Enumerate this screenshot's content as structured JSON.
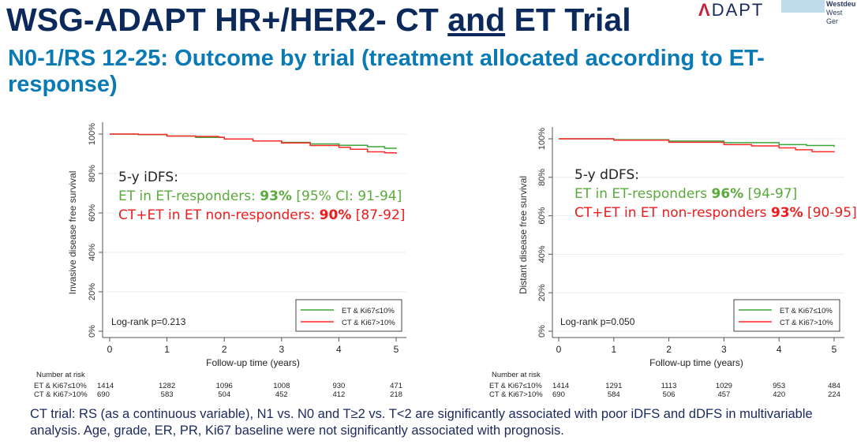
{
  "header": {
    "title_part1": "WSG-ADAPT HR+/HER2- CT ",
    "title_and": "and",
    "title_part2": " ET Trial",
    "subtitle": "N0-1/RS 12-25: Outcome by trial (treatment allocated according to ET-response)",
    "logo_text": "ADAPT",
    "logo2_line1": "Westdeu",
    "logo2_line2": "West Ger"
  },
  "colors": {
    "green": "#3aa63a",
    "red": "#ff2a2a",
    "title": "#0b2a5b",
    "subtitle": "#0a7ab5"
  },
  "chart_data": [
    {
      "type": "line",
      "ylabel": "Invasive disease free survival",
      "xlabel": "Follow-up time (years)",
      "xlim": [
        0,
        5
      ],
      "ylim": [
        0,
        100
      ],
      "xticks": [
        "0",
        "1",
        "2",
        "3",
        "4",
        "5"
      ],
      "yticks": [
        "0%",
        "20%",
        "40%",
        "60%",
        "80%",
        "100%"
      ],
      "grid": true,
      "legend_placement": "bottom-right",
      "logrank": "Log-rank p=0.213",
      "annotation": {
        "head": "5-y iDFS:",
        "l1a": "ET in ET-responders: ",
        "l1b": "93%",
        "l1c": " [95% CI: 91-94]",
        "l2a": "CT+ET in ET non-responders: ",
        "l2b": "90%",
        "l2c": " [87-92]"
      },
      "series": [
        {
          "name": "ET & Ki67≤10%",
          "color": "#3aa63a",
          "x": [
            0,
            0.5,
            1,
            1.5,
            2,
            2.5,
            3,
            3.5,
            4,
            4.5,
            4.8,
            5
          ],
          "y": [
            100,
            99.7,
            99,
            98.3,
            97.5,
            96.5,
            95.8,
            95,
            94.3,
            93.6,
            92.8,
            92.5
          ]
        },
        {
          "name": "CT & Ki67>10%",
          "color": "#ff2a2a",
          "x": [
            0,
            0.5,
            1,
            1.5,
            1.9,
            2,
            2.5,
            3,
            3.5,
            4,
            4.2,
            4.5,
            4.8,
            5
          ],
          "y": [
            100,
            99.8,
            99,
            98.8,
            98.4,
            97.5,
            96.5,
            95.5,
            94.2,
            93.3,
            92.3,
            91,
            90.5,
            90
          ]
        }
      ],
      "risk_table": {
        "label": "Number at risk",
        "rows": [
          {
            "name": "ET & Ki67≤10%",
            "values": [
              "1414",
              "1282",
              "1096",
              "1008",
              "930",
              "471"
            ]
          },
          {
            "name": "CT & Ki67>10%",
            "values": [
              "690",
              "583",
              "504",
              "452",
              "412",
              "218"
            ]
          }
        ]
      }
    },
    {
      "type": "line",
      "ylabel": "Distant disease free survival",
      "xlabel": "Follow-up time (years)",
      "xlim": [
        0,
        5
      ],
      "ylim": [
        0,
        100
      ],
      "xticks": [
        "0",
        "1",
        "2",
        "3",
        "4",
        "5"
      ],
      "yticks": [
        "0%",
        "20%",
        "40%",
        "60%",
        "80%",
        "100%"
      ],
      "grid": true,
      "legend_placement": "bottom-right",
      "logrank": "Log-rank p=0.050",
      "annotation": {
        "head": "5-y dDFS:",
        "l1a": "ET in ET-responders ",
        "l1b": "96%",
        "l1c": " [94-97]",
        "l2a": "CT+ET in ET non-responders ",
        "l2b": "93%",
        "l2c": " [90-95]"
      },
      "series": [
        {
          "name": "ET & Ki67≤10%",
          "color": "#3aa63a",
          "x": [
            0,
            1,
            2,
            3,
            4,
            4.5,
            5
          ],
          "y": [
            100,
            99.5,
            98.8,
            98,
            97,
            96.5,
            95.8
          ]
        },
        {
          "name": "CT & Ki67>10%",
          "color": "#ff2a2a",
          "x": [
            0,
            1,
            2,
            3,
            3.5,
            4,
            4.3,
            4.6,
            5
          ],
          "y": [
            100,
            99.3,
            98.2,
            97,
            96.3,
            95.3,
            94.3,
            93.3,
            93
          ]
        }
      ],
      "risk_table": {
        "label": "Number at risk",
        "rows": [
          {
            "name": "ET & Ki67≤10%",
            "values": [
              "1414",
              "1291",
              "1113",
              "1029",
              "953",
              "484"
            ]
          },
          {
            "name": "CT & Ki67>10%",
            "values": [
              "690",
              "584",
              "506",
              "457",
              "420",
              "224"
            ]
          }
        ]
      }
    }
  ],
  "footer": "CT trial: RS (as a continuous variable), N1 vs. N0 and T≥2 vs. T<2 are significantly associated with poor iDFS and dDFS in multivariable analysis. Age, grade, ER, PR, Ki67 baseline were not significantly associated with prognosis."
}
